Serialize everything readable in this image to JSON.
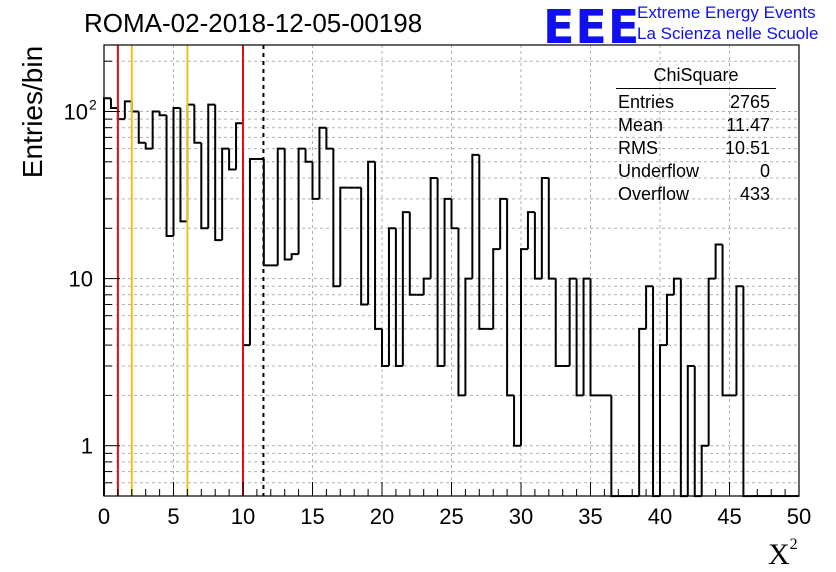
{
  "header": {
    "title": "ROMA-02-2018-12-05-00198",
    "logo_text": "EEE",
    "logo_line1": "Extreme Energy Events",
    "logo_line2": "La Scienza nelle Scuole"
  },
  "stats": {
    "title": "ChiSquare",
    "rows": [
      {
        "label": "Entries",
        "value": "2765"
      },
      {
        "label": "Mean",
        "value": "11.47"
      },
      {
        "label": "RMS",
        "value": "10.51"
      },
      {
        "label": "Underflow",
        "value": "0"
      },
      {
        "label": "Overflow",
        "value": "433"
      }
    ]
  },
  "chart_data": {
    "type": "bar",
    "title": "ROMA-02-2018-12-05-00198",
    "xlabel": "X²",
    "xlabel_base": "X",
    "xlabel_sup": "2",
    "ylabel": "Entries/bin",
    "xlim": [
      0,
      50
    ],
    "ylim": [
      0.5,
      250
    ],
    "yscale": "log",
    "grid": true,
    "bin_width": 0.5,
    "x_ticks": [
      "0",
      "5",
      "10",
      "15",
      "20",
      "25",
      "30",
      "35",
      "40",
      "45",
      "50"
    ],
    "y_ticks": [
      {
        "value": 1,
        "label": "1"
      },
      {
        "value": 10,
        "label": "10"
      },
      {
        "value": 100,
        "label": "10",
        "sup": "2"
      }
    ],
    "values": [
      120,
      105,
      90,
      115,
      100,
      65,
      60,
      100,
      95,
      18,
      105,
      22,
      110,
      65,
      20,
      110,
      17,
      60,
      45,
      85,
      4,
      52,
      52,
      12,
      12,
      60,
      13,
      14,
      60,
      50,
      30,
      80,
      60,
      9,
      35,
      35,
      35,
      7,
      50,
      5,
      3,
      20,
      3,
      25,
      8,
      8,
      10,
      40,
      3,
      30,
      20,
      2,
      10,
      55,
      5,
      5,
      15,
      30,
      2,
      1,
      15,
      25,
      10,
      40,
      10,
      3,
      3,
      10,
      2,
      10,
      2,
      2,
      2,
      0.1,
      0.1,
      0.1,
      0.1,
      5,
      9,
      0.1,
      4,
      8,
      10,
      0.1,
      3,
      0.1,
      1,
      10,
      16,
      2,
      2,
      9,
      0.1,
      0.1,
      0.1,
      0.1,
      0.1,
      0.1,
      0.1,
      0.1
    ],
    "vertical_lines": [
      {
        "x": 1,
        "color": "#dd1111",
        "style": "solid"
      },
      {
        "x": 2,
        "color": "#f0c020",
        "style": "solid"
      },
      {
        "x": 6,
        "color": "#f0c020",
        "style": "solid"
      },
      {
        "x": 10,
        "color": "#dd1111",
        "style": "solid"
      },
      {
        "x": 11.47,
        "color": "#000000",
        "style": "dashed"
      }
    ],
    "line_color": "#000000",
    "grid_color": "#b0b0b0"
  }
}
